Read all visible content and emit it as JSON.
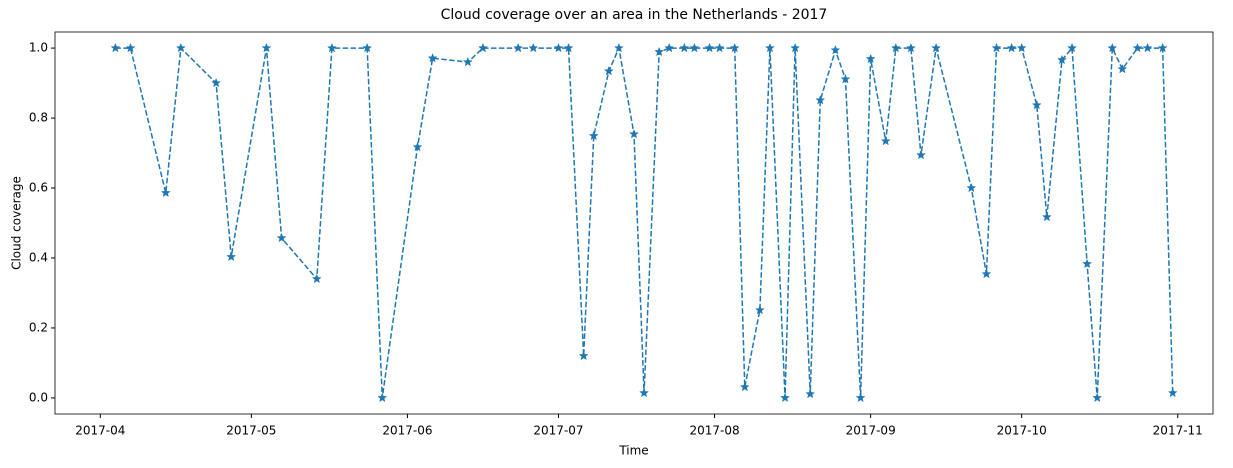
{
  "chart_data": {
    "type": "line",
    "title": "Cloud coverage over an area in the Netherlands - 2017",
    "xlabel": "Time",
    "ylabel": "Cloud coverage",
    "x": [
      94,
      97,
      104,
      107,
      114,
      117,
      124,
      127,
      134,
      137,
      144,
      147,
      154,
      157,
      164,
      167,
      174,
      177,
      182,
      184,
      187,
      189,
      192,
      194,
      197,
      199,
      202,
      204,
      207,
      209,
      212,
      214,
      217,
      219,
      222,
      224,
      227,
      229,
      232,
      234,
      237,
      239,
      242,
      244,
      247,
      249,
      252,
      254,
      257,
      264,
      267,
      269,
      272,
      274,
      277,
      279,
      282,
      284,
      287,
      289,
      292,
      294,
      297,
      299,
      302,
      304
    ],
    "values": [
      1.0,
      1.0,
      0.586,
      1.0,
      0.9,
      0.403,
      1.0,
      0.457,
      0.34,
      1.0,
      1.0,
      0.0,
      0.717,
      0.971,
      0.96,
      1.0,
      1.0,
      1.0,
      1.0,
      1.0,
      0.12,
      0.749,
      0.934,
      1.0,
      0.754,
      0.014,
      0.989,
      1.0,
      1.0,
      1.0,
      1.0,
      1.0,
      1.0,
      0.031,
      0.251,
      1.0,
      0.0,
      1.0,
      0.011,
      0.851,
      0.994,
      0.911,
      0.0,
      0.969,
      0.734,
      1.0,
      1.0,
      0.694,
      1.0,
      0.6,
      0.354,
      1.0,
      1.0,
      1.0,
      0.837,
      0.517,
      0.966,
      1.0,
      0.383,
      0.0,
      1.0,
      0.94,
      1.0,
      1.0,
      1.0,
      0.014
    ],
    "color": "#1f77b4",
    "linestyle": "dashed",
    "marker": "star",
    "xlim": [
      82,
      312
    ],
    "xticks": [
      {
        "value": 91,
        "label": "2017-04"
      },
      {
        "value": 121,
        "label": "2017-05"
      },
      {
        "value": 152,
        "label": "2017-06"
      },
      {
        "value": 182,
        "label": "2017-07"
      },
      {
        "value": 213,
        "label": "2017-08"
      },
      {
        "value": 244,
        "label": "2017-09"
      },
      {
        "value": 274,
        "label": "2017-10"
      },
      {
        "value": 305,
        "label": "2017-11"
      }
    ],
    "ylim": [
      -0.046,
      1.046
    ],
    "yticks": [
      {
        "value": 0,
        "label": "0.0"
      },
      {
        "value": 0.2,
        "label": "0.2"
      },
      {
        "value": 0.4,
        "label": "0.4"
      },
      {
        "value": 0.6,
        "label": "0.6"
      },
      {
        "value": 0.8,
        "label": "0.8"
      },
      {
        "value": 1,
        "label": "1.0"
      }
    ],
    "grid": false
  }
}
